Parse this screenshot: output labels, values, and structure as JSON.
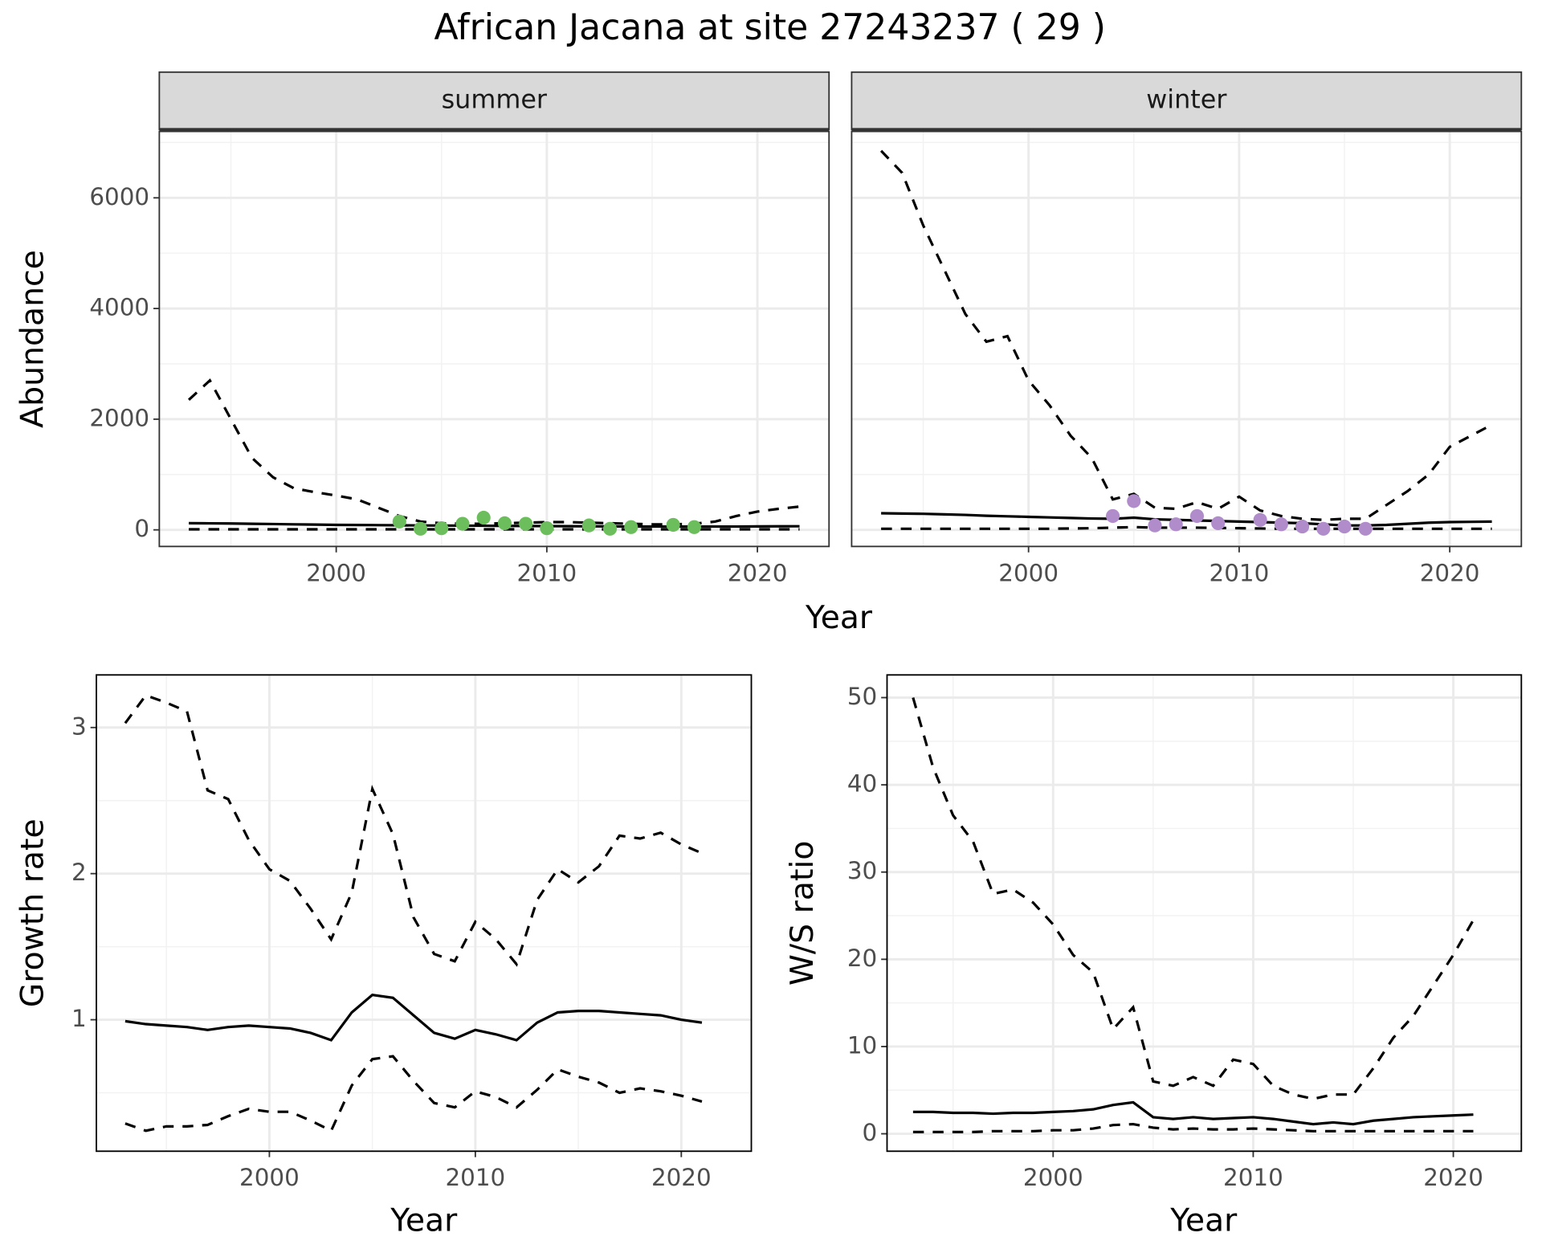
{
  "title": "African Jacana at site 27243237 ( 29 )",
  "xlabel": "Year",
  "chart_data": [
    {
      "type": "line",
      "facet": "summer",
      "ylabel": "Abundance",
      "x": [
        1993,
        1994,
        1995,
        1996,
        1997,
        1998,
        1999,
        2000,
        2001,
        2002,
        2003,
        2004,
        2005,
        2006,
        2007,
        2008,
        2009,
        2010,
        2011,
        2012,
        2013,
        2014,
        2015,
        2016,
        2017,
        2018,
        2019,
        2020,
        2021,
        2022
      ],
      "series": [
        {
          "color": "#000000",
          "dash": false,
          "values": [
            120,
            118,
            115,
            110,
            105,
            100,
            95,
            90,
            88,
            85,
            82,
            80,
            78,
            76,
            74,
            72,
            70,
            68,
            66,
            64,
            62,
            60,
            60,
            60,
            60,
            60,
            60,
            62,
            64,
            65
          ]
        },
        {
          "color": "#000000",
          "dash": true,
          "values": [
            2350,
            2700,
            2000,
            1300,
            950,
            750,
            680,
            620,
            550,
            400,
            250,
            150,
            120,
            110,
            110,
            120,
            130,
            140,
            140,
            130,
            120,
            110,
            100,
            100,
            110,
            150,
            250,
            330,
            380,
            420
          ]
        },
        {
          "color": "#000000",
          "dash": true,
          "values": [
            10,
            10,
            10,
            10,
            10,
            10,
            10,
            10,
            10,
            10,
            10,
            10,
            10,
            10,
            10,
            10,
            10,
            10,
            10,
            10,
            10,
            10,
            10,
            10,
            10,
            10,
            10,
            10,
            10,
            10
          ]
        },
        {
          "color": "#6cbd5b",
          "style": "points",
          "values": [
            null,
            null,
            null,
            null,
            null,
            null,
            null,
            null,
            null,
            null,
            150,
            20,
            30,
            110,
            220,
            120,
            110,
            30,
            null,
            80,
            20,
            50,
            null,
            90,
            50,
            null,
            null,
            null,
            null,
            null
          ]
        }
      ],
      "xlim": [
        1991.6,
        2023.4
      ],
      "xticks": [
        2000,
        2010,
        2020
      ],
      "ylim": [
        -300,
        7200
      ],
      "yticks": [
        0,
        2000,
        4000,
        6000
      ],
      "grid": true
    },
    {
      "type": "line",
      "facet": "winter",
      "x": [
        1993,
        1994,
        1995,
        1996,
        1997,
        1998,
        1999,
        2000,
        2001,
        2002,
        2003,
        2004,
        2005,
        2006,
        2007,
        2008,
        2009,
        2010,
        2011,
        2012,
        2013,
        2014,
        2015,
        2016,
        2017,
        2018,
        2019,
        2020,
        2021,
        2022
      ],
      "series": [
        {
          "color": "#000000",
          "dash": false,
          "values": [
            300,
            295,
            290,
            280,
            270,
            255,
            245,
            235,
            225,
            215,
            205,
            200,
            220,
            190,
            180,
            170,
            160,
            150,
            140,
            130,
            120,
            100,
            80,
            80,
            90,
            110,
            130,
            140,
            145,
            150
          ]
        },
        {
          "color": "#000000",
          "dash": true,
          "values": [
            6850,
            6450,
            5500,
            4700,
            3900,
            3400,
            3500,
            2700,
            2250,
            1700,
            1300,
            550,
            650,
            400,
            380,
            500,
            380,
            600,
            350,
            250,
            200,
            180,
            200,
            200,
            450,
            700,
            1000,
            1500,
            1700,
            1900
          ]
        },
        {
          "color": "#000000",
          "dash": true,
          "values": [
            20,
            20,
            20,
            20,
            20,
            20,
            20,
            20,
            20,
            25,
            30,
            40,
            50,
            40,
            40,
            40,
            35,
            30,
            25,
            20,
            20,
            20,
            20,
            20,
            20,
            20,
            20,
            20,
            20,
            20
          ]
        },
        {
          "color": "#b08ccb",
          "style": "points",
          "values": [
            null,
            null,
            null,
            null,
            null,
            null,
            null,
            null,
            null,
            null,
            null,
            250,
            520,
            80,
            100,
            250,
            120,
            null,
            180,
            100,
            60,
            20,
            60,
            20,
            null,
            null,
            null,
            null,
            null,
            null
          ]
        }
      ],
      "xlim": [
        1991.6,
        2023.4
      ],
      "xticks": [
        2000,
        2010,
        2020
      ],
      "ylim": [
        -300,
        7200
      ],
      "yticks": [
        0,
        2000,
        4000,
        6000
      ],
      "grid": true
    },
    {
      "type": "line",
      "xlabel": "Year",
      "ylabel": "Growth rate",
      "x": [
        1993,
        1994,
        1995,
        1996,
        1997,
        1998,
        1999,
        2000,
        2001,
        2002,
        2003,
        2004,
        2005,
        2006,
        2007,
        2008,
        2009,
        2010,
        2011,
        2012,
        2013,
        2014,
        2015,
        2016,
        2017,
        2018,
        2019,
        2020,
        2021
      ],
      "series": [
        {
          "color": "#000000",
          "dash": false,
          "values": [
            0.99,
            0.97,
            0.96,
            0.95,
            0.93,
            0.95,
            0.96,
            0.95,
            0.94,
            0.91,
            0.86,
            1.05,
            1.17,
            1.15,
            1.03,
            0.91,
            0.87,
            0.93,
            0.9,
            0.86,
            0.98,
            1.05,
            1.06,
            1.06,
            1.05,
            1.04,
            1.03,
            1.0,
            0.98
          ]
        },
        {
          "color": "#000000",
          "dash": true,
          "values": [
            3.03,
            3.22,
            3.17,
            3.11,
            2.57,
            2.51,
            2.23,
            2.03,
            1.95,
            1.76,
            1.55,
            1.87,
            2.58,
            2.27,
            1.7,
            1.45,
            1.4,
            1.67,
            1.55,
            1.38,
            1.82,
            2.03,
            1.94,
            2.05,
            2.26,
            2.24,
            2.28,
            2.2,
            2.14
          ]
        },
        {
          "color": "#000000",
          "dash": true,
          "values": [
            0.29,
            0.24,
            0.27,
            0.27,
            0.28,
            0.34,
            0.39,
            0.37,
            0.37,
            0.31,
            0.24,
            0.55,
            0.73,
            0.75,
            0.58,
            0.43,
            0.4,
            0.51,
            0.47,
            0.4,
            0.52,
            0.66,
            0.61,
            0.57,
            0.5,
            0.53,
            0.51,
            0.48,
            0.44
          ]
        }
      ],
      "xlim": [
        1991.6,
        2023.4
      ],
      "xticks": [
        2000,
        2010,
        2020
      ],
      "ylim": [
        0.1,
        3.36
      ],
      "yticks": [
        1,
        2,
        3
      ],
      "grid": true
    },
    {
      "type": "line",
      "xlabel": "Year",
      "ylabel": "W/S ratio",
      "x": [
        1993,
        1994,
        1995,
        1996,
        1997,
        1998,
        1999,
        2000,
        2001,
        2002,
        2003,
        2004,
        2005,
        2006,
        2007,
        2008,
        2009,
        2010,
        2011,
        2012,
        2013,
        2014,
        2015,
        2016,
        2017,
        2018,
        2019,
        2020,
        2021
      ],
      "series": [
        {
          "color": "#000000",
          "dash": false,
          "values": [
            2.5,
            2.5,
            2.4,
            2.4,
            2.3,
            2.4,
            2.4,
            2.5,
            2.6,
            2.8,
            3.3,
            3.6,
            1.9,
            1.7,
            1.9,
            1.7,
            1.8,
            1.9,
            1.7,
            1.4,
            1.1,
            1.3,
            1.1,
            1.5,
            1.7,
            1.9,
            2.0,
            2.1,
            2.2
          ]
        },
        {
          "color": "#000000",
          "dash": true,
          "values": [
            50,
            42,
            36.5,
            33.5,
            27.5,
            28,
            26.5,
            24,
            20.5,
            18.5,
            12,
            14.5,
            6,
            5.5,
            6.5,
            5.5,
            8.5,
            8,
            5.5,
            4.5,
            4,
            4.5,
            4.5,
            7.5,
            11,
            13.5,
            17,
            20.5,
            24.5
          ]
        },
        {
          "color": "#000000",
          "dash": true,
          "values": [
            0.2,
            0.2,
            0.2,
            0.2,
            0.3,
            0.3,
            0.3,
            0.4,
            0.4,
            0.6,
            1.0,
            1.1,
            0.7,
            0.5,
            0.6,
            0.5,
            0.5,
            0.6,
            0.5,
            0.4,
            0.3,
            0.3,
            0.3,
            0.3,
            0.3,
            0.3,
            0.3,
            0.3,
            0.3
          ]
        }
      ],
      "xlim": [
        1991.7,
        2023.4
      ],
      "xticks": [
        2000,
        2010,
        2020
      ],
      "ylim": [
        -2,
        52.6
      ],
      "yticks": [
        0,
        10,
        20,
        30,
        40,
        50
      ],
      "grid": true
    }
  ]
}
